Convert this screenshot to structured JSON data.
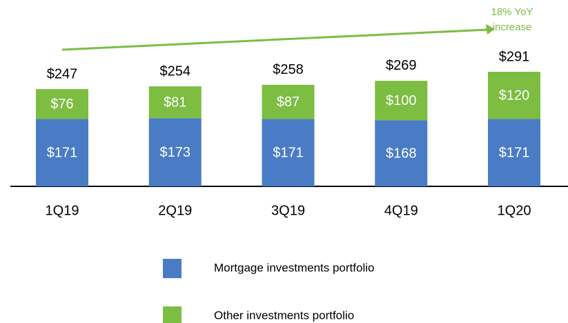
{
  "chart_data": {
    "type": "stacked_bar",
    "categories": [
      "1Q19",
      "2Q19",
      "3Q19",
      "4Q19",
      "1Q20"
    ],
    "series": [
      {
        "name": "Mortgage investments portfolio",
        "color": "#4a7cc6",
        "values": [
          171,
          173,
          171,
          168,
          171
        ],
        "value_labels": [
          "$171",
          "$173",
          "$171",
          "$168",
          "$171"
        ]
      },
      {
        "name": "Other investments portfolio",
        "color": "#7cbd42",
        "values": [
          76,
          81,
          87,
          100,
          120
        ],
        "value_labels": [
          "$76",
          "$81",
          "$87",
          "$100",
          "$120"
        ]
      }
    ],
    "totals": [
      247,
      254,
      258,
      269,
      291
    ],
    "total_labels": [
      "$247",
      "$254",
      "$258",
      "$269",
      "$291"
    ],
    "annotation": [
      "18% YoY",
      "increase"
    ]
  }
}
